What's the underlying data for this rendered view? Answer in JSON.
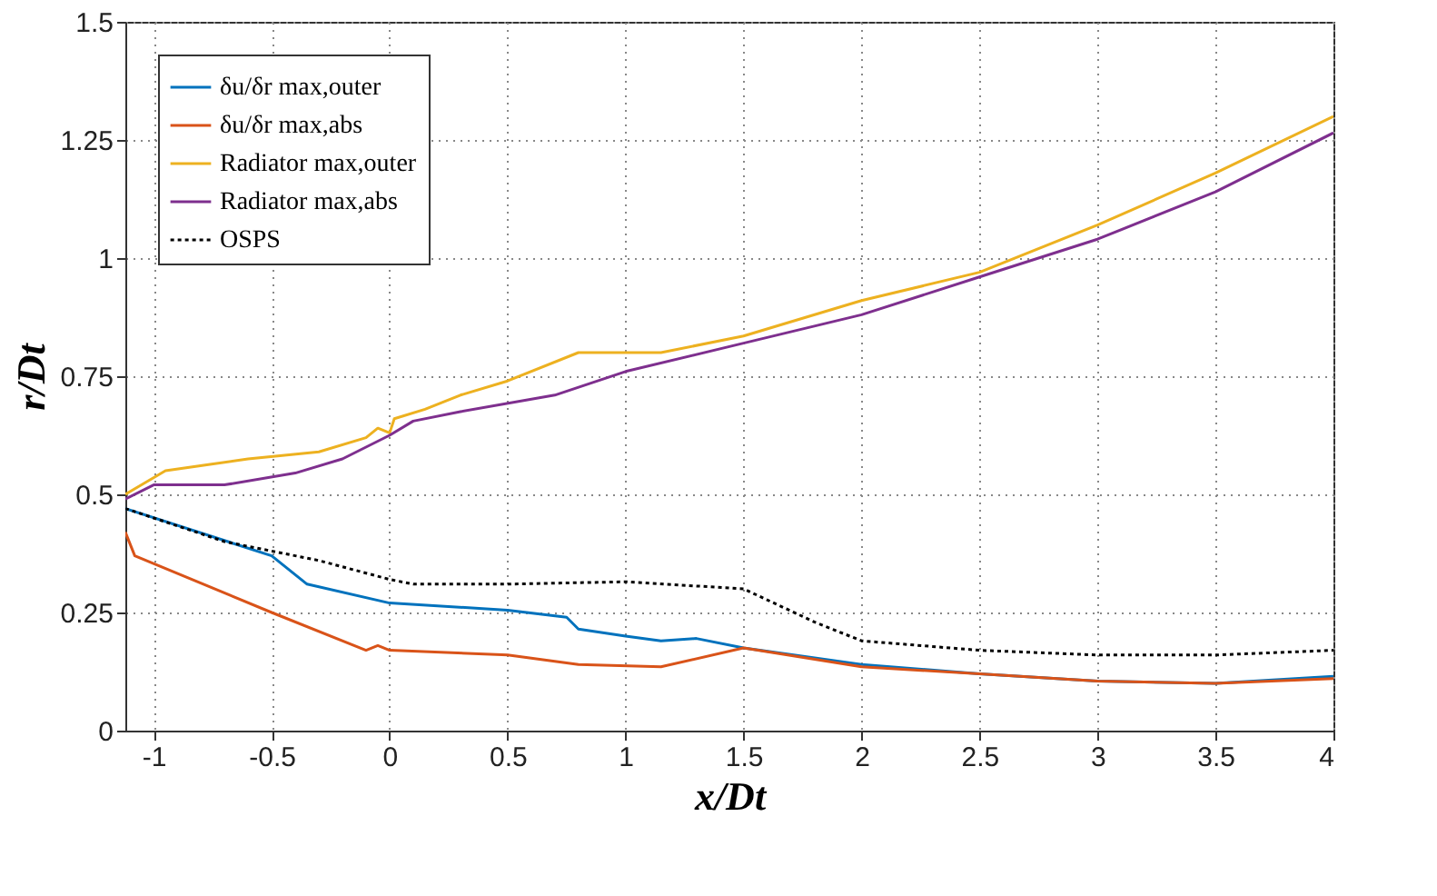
{
  "chart_data": {
    "type": "line",
    "xlabel": "x/Dt",
    "ylabel": "r/Dt",
    "xlim": [
      -1.12,
      4
    ],
    "ylim": [
      0,
      1.5
    ],
    "xticks": [
      -1,
      -0.5,
      0,
      0.5,
      1,
      1.5,
      2,
      2.5,
      3,
      3.5,
      4
    ],
    "yticks": [
      0,
      0.25,
      0.5,
      0.75,
      1,
      1.25,
      1.5
    ],
    "grid": true,
    "legend": "top left",
    "series": [
      {
        "name": "δu/δr max,outer",
        "color": "#0072bd",
        "line_style": "solid",
        "x": [
          -1.12,
          -0.5,
          -0.35,
          0,
          0.5,
          0.75,
          0.8,
          1,
          1.15,
          1.3,
          1.5,
          2,
          2.5,
          3,
          3.5,
          4
        ],
        "values": [
          0.47,
          0.37,
          0.31,
          0.27,
          0.255,
          0.24,
          0.215,
          0.2,
          0.19,
          0.195,
          0.175,
          0.14,
          0.12,
          0.105,
          0.1,
          0.115
        ]
      },
      {
        "name": "δu/δr max,abs",
        "color": "#d95319",
        "line_style": "solid",
        "x": [
          -1.12,
          -1.08,
          -0.5,
          -0.1,
          -0.05,
          0,
          0.5,
          0.8,
          1.15,
          1.5,
          2,
          2.5,
          3,
          3.5,
          4
        ],
        "values": [
          0.42,
          0.37,
          0.25,
          0.17,
          0.18,
          0.17,
          0.16,
          0.14,
          0.135,
          0.175,
          0.135,
          0.12,
          0.105,
          0.1,
          0.11
        ]
      },
      {
        "name": "Radiator max,outer",
        "color": "#edb120",
        "line_style": "solid",
        "x": [
          -1.12,
          -0.95,
          -0.6,
          -0.3,
          -0.1,
          -0.05,
          0,
          0.02,
          0.15,
          0.3,
          0.5,
          0.8,
          1.15,
          1.5,
          2,
          2.5,
          3,
          3.5,
          4
        ],
        "values": [
          0.5,
          0.55,
          0.575,
          0.59,
          0.62,
          0.64,
          0.63,
          0.66,
          0.68,
          0.71,
          0.74,
          0.8,
          0.8,
          0.835,
          0.91,
          0.97,
          1.07,
          1.18,
          1.3
        ]
      },
      {
        "name": "Radiator max,abs",
        "color": "#7e2f8e",
        "line_style": "solid",
        "x": [
          -1.12,
          -1,
          -0.7,
          -0.4,
          -0.2,
          0,
          0.1,
          0.3,
          0.7,
          1,
          1.5,
          2,
          2.5,
          3,
          3.5,
          4
        ],
        "values": [
          0.49,
          0.52,
          0.52,
          0.545,
          0.575,
          0.625,
          0.655,
          0.675,
          0.71,
          0.76,
          0.82,
          0.88,
          0.96,
          1.04,
          1.14,
          1.265
        ]
      },
      {
        "name": "OSPS",
        "color": "#000000",
        "line_style": "dotted",
        "x": [
          -1.12,
          -0.7,
          -0.3,
          0,
          0.1,
          0.5,
          1,
          1.5,
          1.8,
          2,
          2.5,
          3,
          3.5,
          4
        ],
        "values": [
          0.47,
          0.4,
          0.36,
          0.32,
          0.31,
          0.31,
          0.315,
          0.3,
          0.23,
          0.19,
          0.17,
          0.16,
          0.16,
          0.17
        ]
      }
    ]
  }
}
